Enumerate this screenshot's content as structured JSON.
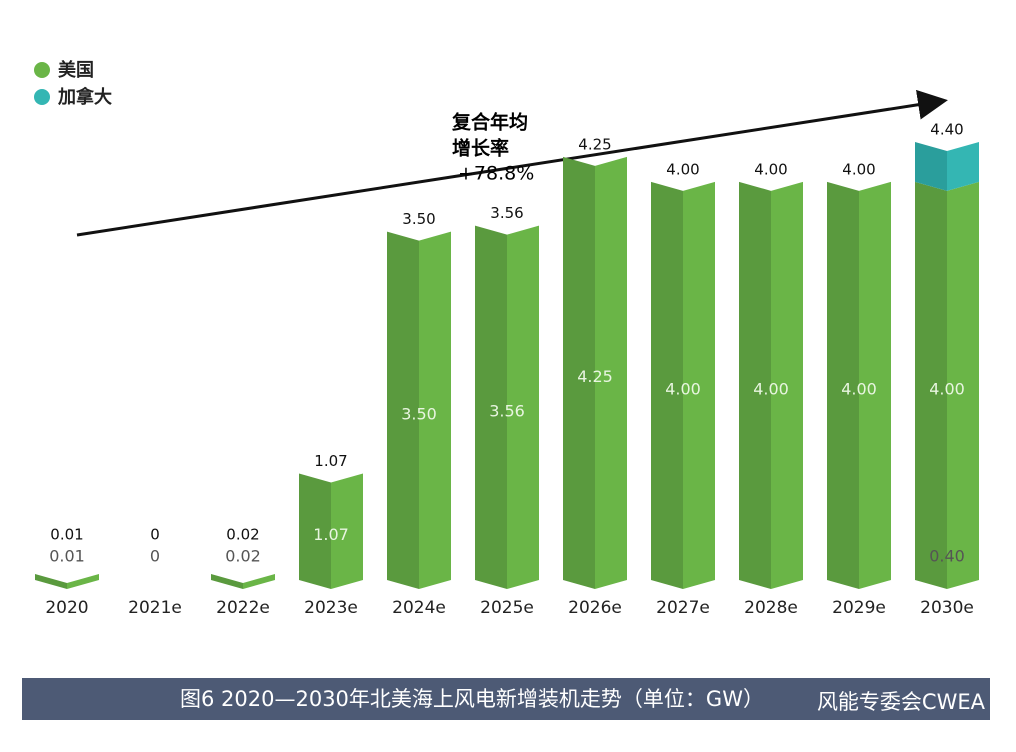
{
  "chart_data": {
    "type": "stacked-bar",
    "categories": [
      "2020",
      "2021e",
      "2022e",
      "2023e",
      "2024e",
      "2025e",
      "2026e",
      "2027e",
      "2028e",
      "2029e",
      "2030e"
    ],
    "series": [
      {
        "name": "美国",
        "color": "#6ab547",
        "shade": "#5a9a3e",
        "values": [
          0.01,
          0,
          0.02,
          1.07,
          3.5,
          3.56,
          4.25,
          4,
          4,
          4,
          4
        ],
        "value_labels": [
          "0.01",
          "0",
          "0.02",
          "1.07",
          "3.50",
          "3.56",
          "4.25",
          "4.00",
          "4.00",
          "4.00",
          "4.00"
        ]
      },
      {
        "name": "加拿大",
        "color": "#34b6b3",
        "shade": "#2a9e9c",
        "values": [
          null,
          null,
          null,
          null,
          null,
          null,
          null,
          null,
          null,
          null,
          0.4
        ],
        "value_labels": [
          null,
          null,
          null,
          null,
          null,
          null,
          null,
          null,
          null,
          null,
          "0.40"
        ]
      }
    ],
    "total_labels": [
      "0.01",
      "0",
      "0.02",
      "1.07",
      "3.50",
      "3.56",
      "4.25",
      "4.00",
      "4.00",
      "4.00",
      "4.40"
    ],
    "annotation": [
      "复合年均",
      "增长率",
      "+78.8%"
    ],
    "caption": "图6 2020—2030年北美海上风电新增装机走势（单位：GW）",
    "watermark": "风能专委会CWEA",
    "legend": "top-left"
  }
}
